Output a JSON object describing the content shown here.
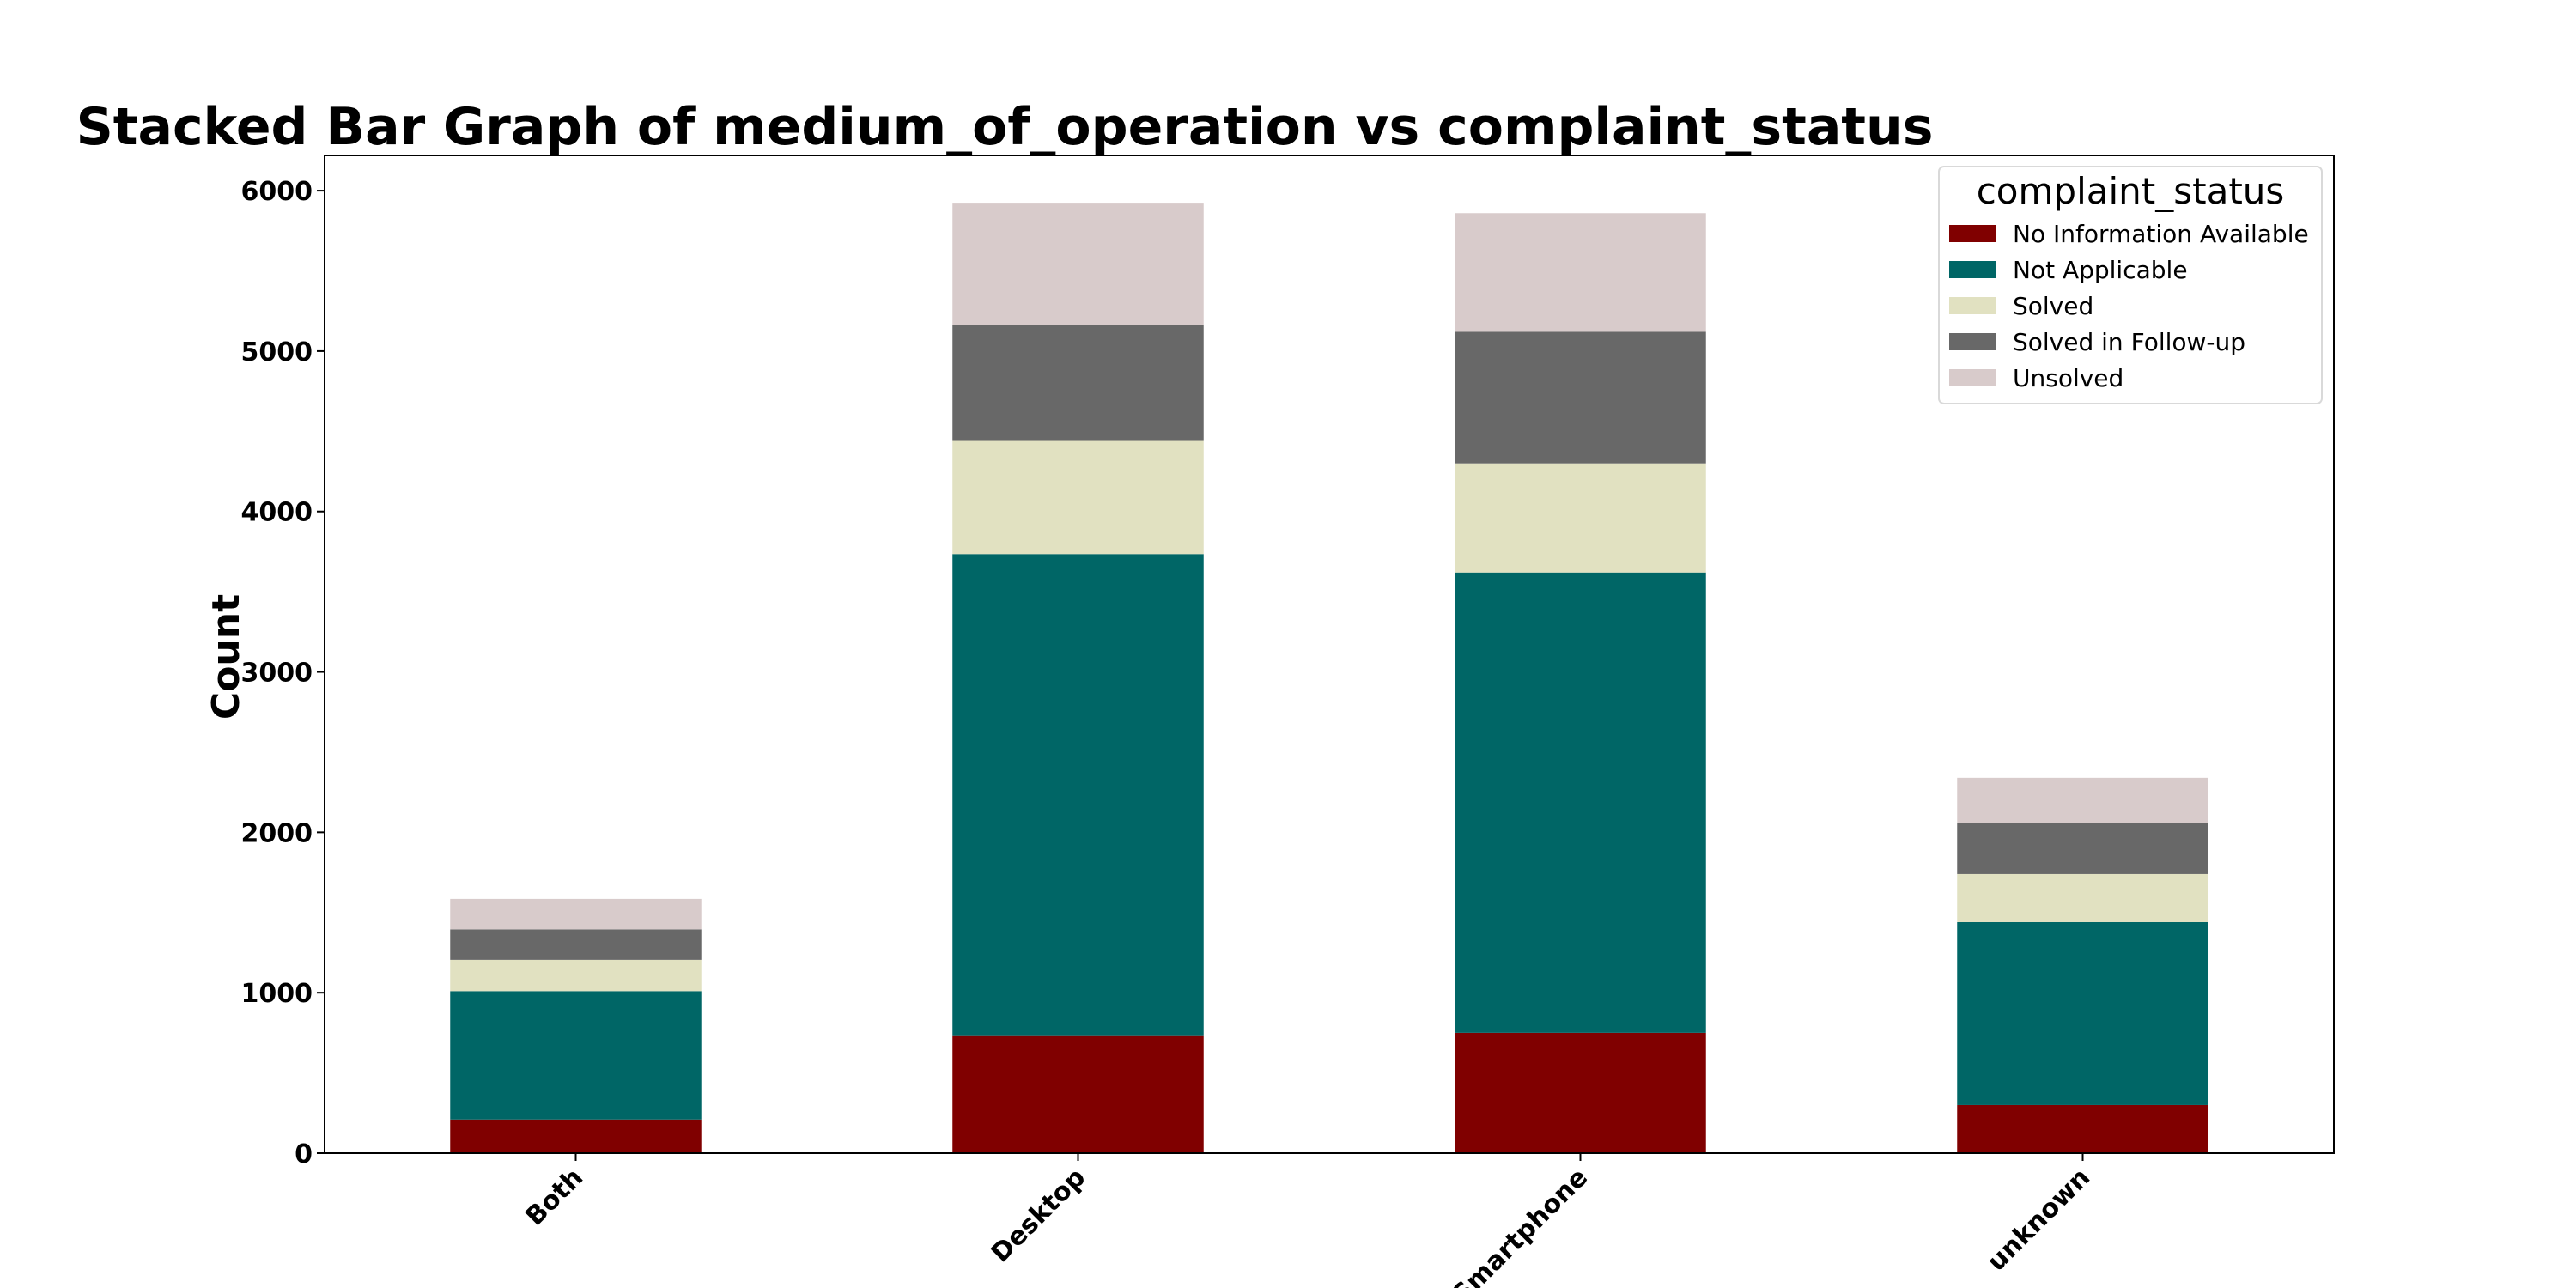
{
  "chart_data": {
    "type": "bar",
    "stacked": true,
    "title": "Stacked Bar Graph of medium_of_operation vs complaint_status",
    "xlabel": "",
    "ylabel": "Count",
    "ylim": [
      0,
      6220
    ],
    "yticks": [
      0,
      1000,
      2000,
      3000,
      4000,
      5000,
      6000
    ],
    "categories": [
      "Both",
      "Desktop",
      "Smartphone",
      "unknown"
    ],
    "series": [
      {
        "name": "No Information Available",
        "color": "#800000",
        "values": [
          210,
          735,
          750,
          300
        ]
      },
      {
        "name": "Not Applicable",
        "color": "#006666",
        "values": [
          800,
          3000,
          2870,
          1140
        ]
      },
      {
        "name": "Solved",
        "color": "#e1e1c1",
        "values": [
          195,
          705,
          680,
          300
        ]
      },
      {
        "name": "Solved in Follow-up",
        "color": "#686868",
        "values": [
          190,
          725,
          820,
          320
        ]
      },
      {
        "name": "Unsolved",
        "color": "#d8cbcb",
        "values": [
          190,
          760,
          740,
          280
        ]
      }
    ],
    "legend": {
      "title": "complaint_status",
      "placement": "top-right"
    },
    "grid": false
  }
}
